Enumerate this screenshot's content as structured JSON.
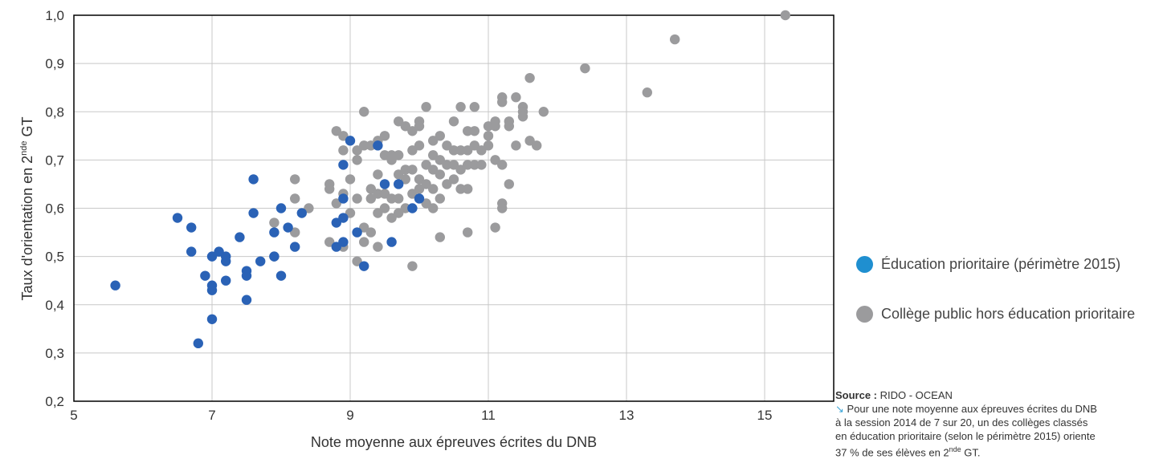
{
  "chart_data": {
    "type": "scatter",
    "xlabel": "Note moyenne aux épreuves écrites du DNB",
    "ylabel_main": "Taux d'orientation en 2",
    "ylabel_sup": "nde",
    "ylabel_end": " GT",
    "xlim": [
      5,
      16
    ],
    "ylim": [
      0.2,
      1.0
    ],
    "x_ticks": [
      5,
      7,
      9,
      11,
      13,
      15
    ],
    "x_tick_labels": [
      "5",
      "7",
      "9",
      "11",
      "13",
      "15"
    ],
    "y_ticks": [
      0.2,
      0.3,
      0.4,
      0.5,
      0.6,
      0.7,
      0.8,
      0.9,
      1.0
    ],
    "y_tick_labels": [
      "0,2",
      "0,3",
      "0,4",
      "0,5",
      "0,6",
      "0,7",
      "0,8",
      "0,9",
      "1,0"
    ],
    "grid": true,
    "legend_position": "right",
    "series": [
      {
        "name": "Collège public hors éducation prioritaire",
        "color": "#9b9b9d",
        "points": [
          [
            7.9,
            0.57
          ],
          [
            7.9,
            0.5
          ],
          [
            8.2,
            0.66
          ],
          [
            8.2,
            0.62
          ],
          [
            8.2,
            0.55
          ],
          [
            8.4,
            0.6
          ],
          [
            8.7,
            0.65
          ],
          [
            8.7,
            0.64
          ],
          [
            8.7,
            0.53
          ],
          [
            8.8,
            0.76
          ],
          [
            8.8,
            0.61
          ],
          [
            8.9,
            0.75
          ],
          [
            8.9,
            0.72
          ],
          [
            8.9,
            0.63
          ],
          [
            8.9,
            0.52
          ],
          [
            9.0,
            0.66
          ],
          [
            9.0,
            0.59
          ],
          [
            9.1,
            0.72
          ],
          [
            9.1,
            0.7
          ],
          [
            9.1,
            0.62
          ],
          [
            9.1,
            0.49
          ],
          [
            9.2,
            0.8
          ],
          [
            9.2,
            0.73
          ],
          [
            9.2,
            0.56
          ],
          [
            9.2,
            0.53
          ],
          [
            9.3,
            0.73
          ],
          [
            9.3,
            0.64
          ],
          [
            9.3,
            0.62
          ],
          [
            9.3,
            0.55
          ],
          [
            9.4,
            0.74
          ],
          [
            9.4,
            0.67
          ],
          [
            9.4,
            0.63
          ],
          [
            9.4,
            0.59
          ],
          [
            9.4,
            0.52
          ],
          [
            9.5,
            0.75
          ],
          [
            9.5,
            0.71
          ],
          [
            9.5,
            0.63
          ],
          [
            9.5,
            0.6
          ],
          [
            9.6,
            0.71
          ],
          [
            9.6,
            0.62
          ],
          [
            9.6,
            0.58
          ],
          [
            9.6,
            0.7
          ],
          [
            9.7,
            0.78
          ],
          [
            9.7,
            0.71
          ],
          [
            9.7,
            0.67
          ],
          [
            9.7,
            0.62
          ],
          [
            9.7,
            0.59
          ],
          [
            9.8,
            0.77
          ],
          [
            9.8,
            0.68
          ],
          [
            9.8,
            0.66
          ],
          [
            9.8,
            0.6
          ],
          [
            9.9,
            0.76
          ],
          [
            9.9,
            0.72
          ],
          [
            9.9,
            0.68
          ],
          [
            9.9,
            0.63
          ],
          [
            9.9,
            0.48
          ],
          [
            10.0,
            0.78
          ],
          [
            10.0,
            0.77
          ],
          [
            10.0,
            0.73
          ],
          [
            10.0,
            0.66
          ],
          [
            10.0,
            0.64
          ],
          [
            10.1,
            0.81
          ],
          [
            10.1,
            0.69
          ],
          [
            10.1,
            0.65
          ],
          [
            10.1,
            0.61
          ],
          [
            10.2,
            0.74
          ],
          [
            10.2,
            0.71
          ],
          [
            10.2,
            0.68
          ],
          [
            10.2,
            0.64
          ],
          [
            10.2,
            0.6
          ],
          [
            10.3,
            0.75
          ],
          [
            10.3,
            0.7
          ],
          [
            10.3,
            0.67
          ],
          [
            10.3,
            0.62
          ],
          [
            10.3,
            0.54
          ],
          [
            10.4,
            0.73
          ],
          [
            10.4,
            0.69
          ],
          [
            10.4,
            0.65
          ],
          [
            10.5,
            0.78
          ],
          [
            10.5,
            0.72
          ],
          [
            10.5,
            0.69
          ],
          [
            10.5,
            0.66
          ],
          [
            10.6,
            0.81
          ],
          [
            10.6,
            0.72
          ],
          [
            10.6,
            0.68
          ],
          [
            10.6,
            0.64
          ],
          [
            10.7,
            0.76
          ],
          [
            10.7,
            0.72
          ],
          [
            10.7,
            0.69
          ],
          [
            10.7,
            0.64
          ],
          [
            10.7,
            0.55
          ],
          [
            10.8,
            0.81
          ],
          [
            10.8,
            0.76
          ],
          [
            10.8,
            0.73
          ],
          [
            10.8,
            0.69
          ],
          [
            10.9,
            0.72
          ],
          [
            10.9,
            0.69
          ],
          [
            11.0,
            0.77
          ],
          [
            11.0,
            0.75
          ],
          [
            11.0,
            0.73
          ],
          [
            11.1,
            0.78
          ],
          [
            11.1,
            0.77
          ],
          [
            11.1,
            0.7
          ],
          [
            11.1,
            0.56
          ],
          [
            11.2,
            0.83
          ],
          [
            11.2,
            0.82
          ],
          [
            11.2,
            0.69
          ],
          [
            11.2,
            0.61
          ],
          [
            11.2,
            0.6
          ],
          [
            11.3,
            0.78
          ],
          [
            11.3,
            0.77
          ],
          [
            11.3,
            0.65
          ],
          [
            11.4,
            0.83
          ],
          [
            11.4,
            0.73
          ],
          [
            11.5,
            0.81
          ],
          [
            11.5,
            0.8
          ],
          [
            11.5,
            0.79
          ],
          [
            11.6,
            0.87
          ],
          [
            11.6,
            0.74
          ],
          [
            11.7,
            0.73
          ],
          [
            11.8,
            0.8
          ],
          [
            12.4,
            0.89
          ],
          [
            13.3,
            0.84
          ],
          [
            13.7,
            0.95
          ],
          [
            15.3,
            1.0
          ]
        ]
      },
      {
        "name": "Éducation prioritaire (périmètre 2015)",
        "color": "#2a62b6",
        "points": [
          [
            5.6,
            0.44
          ],
          [
            6.5,
            0.58
          ],
          [
            6.7,
            0.56
          ],
          [
            6.7,
            0.51
          ],
          [
            6.8,
            0.32
          ],
          [
            6.9,
            0.46
          ],
          [
            7.0,
            0.5
          ],
          [
            7.0,
            0.44
          ],
          [
            7.0,
            0.43
          ],
          [
            7.0,
            0.37
          ],
          [
            7.1,
            0.51
          ],
          [
            7.2,
            0.49
          ],
          [
            7.2,
            0.5
          ],
          [
            7.2,
            0.45
          ],
          [
            7.4,
            0.54
          ],
          [
            7.5,
            0.47
          ],
          [
            7.5,
            0.46
          ],
          [
            7.5,
            0.41
          ],
          [
            7.6,
            0.66
          ],
          [
            7.6,
            0.59
          ],
          [
            7.7,
            0.49
          ],
          [
            7.9,
            0.55
          ],
          [
            7.9,
            0.5
          ],
          [
            8.0,
            0.6
          ],
          [
            8.0,
            0.46
          ],
          [
            8.1,
            0.56
          ],
          [
            8.2,
            0.52
          ],
          [
            8.3,
            0.59
          ],
          [
            8.8,
            0.57
          ],
          [
            8.8,
            0.52
          ],
          [
            8.9,
            0.69
          ],
          [
            8.9,
            0.62
          ],
          [
            8.9,
            0.58
          ],
          [
            8.9,
            0.53
          ],
          [
            9.0,
            0.74
          ],
          [
            9.1,
            0.55
          ],
          [
            9.2,
            0.48
          ],
          [
            9.4,
            0.73
          ],
          [
            9.5,
            0.65
          ],
          [
            9.6,
            0.53
          ],
          [
            9.7,
            0.65
          ],
          [
            9.9,
            0.6
          ],
          [
            10.0,
            0.62
          ]
        ]
      }
    ]
  },
  "source": {
    "label": "Source :",
    "text": " RIDO - OCEAN",
    "note_line1": " Pour une note moyenne aux épreuves écrites du DNB",
    "note_line2": "à la session 2014 de 7 sur 20, un des collèges classés",
    "note_line3": "en éducation prioritaire (selon le périmètre 2015) oriente",
    "note_line4_pre": "37 % de ses élèves en 2",
    "note_line4_sup": "nde",
    "note_line4_post": " GT."
  }
}
